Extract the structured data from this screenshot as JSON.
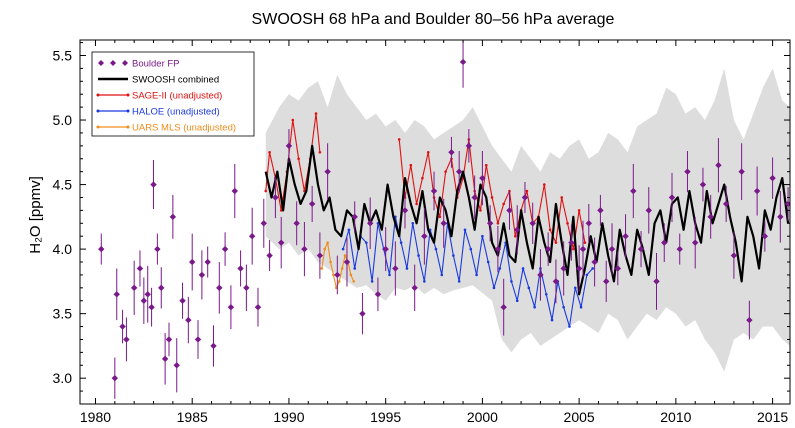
{
  "chart_data": {
    "type": "line",
    "title": "SWOOSH 68 hPa and Boulder 80–56 hPa average",
    "xlabel": "",
    "ylabel": "H₂O [ppmv]",
    "xlim": [
      1979.2,
      2015.9
    ],
    "ylim": [
      2.8,
      5.62
    ],
    "xticks": [
      1980,
      1985,
      1990,
      1995,
      2000,
      2005,
      2010,
      2015
    ],
    "yticks": [
      3.0,
      3.5,
      4.0,
      4.5,
      5.0,
      5.5
    ],
    "grid": false,
    "legend_position": "top-left",
    "envelope": {
      "name": "",
      "color": "#dddddd",
      "x": [
        1988.8,
        1989.5,
        1990.0,
        1990.5,
        1991.0,
        1991.5,
        1992.0,
        1992.5,
        1993.0,
        1993.5,
        1994.0,
        1994.5,
        1995.0,
        1995.5,
        1996.0,
        1996.5,
        1997.0,
        1997.5,
        1998.0,
        1998.5,
        1999.0,
        1999.5,
        2000.0,
        2000.5,
        2001.0,
        2001.5,
        2002.0,
        2002.5,
        2003.0,
        2003.5,
        2004.0,
        2004.5,
        2005.0,
        2005.5,
        2006.0,
        2006.5,
        2007.0,
        2007.5,
        2008.0,
        2008.5,
        2009.0,
        2009.5,
        2010.0,
        2010.5,
        2011.0,
        2011.5,
        2012.0,
        2012.5,
        2013.0,
        2013.5,
        2014.0,
        2014.5,
        2015.0,
        2015.5,
        2015.9
      ],
      "upper": [
        4.9,
        5.1,
        5.2,
        5.15,
        5.25,
        5.3,
        5.1,
        5.35,
        5.2,
        5.1,
        5.0,
        5.05,
        4.95,
        5.0,
        4.9,
        5.0,
        4.95,
        4.85,
        4.9,
        4.95,
        5.0,
        5.1,
        4.95,
        4.8,
        4.7,
        4.6,
        4.8,
        4.7,
        4.6,
        4.75,
        4.7,
        4.8,
        4.85,
        4.7,
        4.75,
        4.9,
        4.85,
        4.75,
        4.95,
        5.0,
        5.05,
        5.25,
        5.2,
        5.05,
        5.1,
        5.0,
        5.15,
        5.4,
        5.0,
        4.85,
        5.05,
        5.25,
        5.4,
        5.15,
        5.1
      ],
      "lower": [
        4.1,
        4.0,
        4.05,
        3.95,
        4.0,
        3.9,
        3.85,
        3.8,
        3.75,
        3.7,
        3.72,
        3.65,
        3.6,
        3.7,
        3.68,
        3.72,
        3.65,
        3.7,
        3.65,
        3.68,
        3.7,
        3.72,
        3.66,
        3.6,
        3.3,
        3.2,
        3.3,
        3.35,
        3.25,
        3.3,
        3.35,
        3.4,
        3.45,
        3.4,
        3.35,
        3.5,
        3.45,
        3.3,
        3.4,
        3.5,
        3.45,
        3.55,
        3.5,
        3.4,
        3.45,
        3.3,
        3.2,
        3.05,
        3.3,
        3.35,
        3.3,
        3.4,
        3.4,
        3.3,
        3.25
      ]
    },
    "series": [
      {
        "name": "Boulder FP",
        "color": "#7a1a8a",
        "style": "diamond-markers-with-errorbars",
        "x": [
          1980.3,
          1981.0,
          1981.1,
          1981.4,
          1981.6,
          1982.0,
          1982.3,
          1982.5,
          1982.7,
          1982.9,
          1983.0,
          1983.2,
          1983.4,
          1983.6,
          1983.8,
          1984.0,
          1984.2,
          1984.5,
          1984.8,
          1985.0,
          1985.3,
          1985.5,
          1985.8,
          1986.1,
          1986.4,
          1986.7,
          1987.0,
          1987.2,
          1987.5,
          1987.8,
          1988.1,
          1988.4,
          1988.7,
          1989.0,
          1989.3,
          1989.6,
          1990.0,
          1990.4,
          1990.8,
          1991.2,
          1991.6,
          1992.0,
          1992.5,
          1993.0,
          1993.4,
          1993.8,
          1994.2,
          1994.6,
          1995.0,
          1995.5,
          1996.0,
          1996.5,
          1997.0,
          1997.5,
          1998.0,
          1998.4,
          1998.8,
          1999.0,
          1999.3,
          1999.6,
          2000.0,
          2000.4,
          2000.8,
          2001.1,
          2001.4,
          2001.8,
          2002.2,
          2002.6,
          2003.0,
          2003.4,
          2003.8,
          2004.2,
          2004.6,
          2005.0,
          2005.2,
          2005.5,
          2005.8,
          2006.1,
          2006.4,
          2006.7,
          2007.0,
          2007.4,
          2007.8,
          2008.2,
          2008.6,
          2009.0,
          2009.4,
          2009.8,
          2010.2,
          2010.6,
          2011.0,
          2011.4,
          2011.8,
          2012.2,
          2012.6,
          2013.0,
          2013.4,
          2013.8,
          2014.2,
          2014.6,
          2015.0,
          2015.4,
          2015.8
        ],
        "y": [
          4.0,
          3.0,
          3.65,
          3.4,
          3.3,
          3.7,
          3.85,
          3.6,
          3.65,
          3.55,
          4.5,
          4.0,
          3.7,
          3.15,
          3.3,
          4.25,
          3.1,
          3.6,
          3.45,
          3.9,
          3.3,
          3.8,
          3.9,
          3.25,
          3.7,
          4.0,
          3.55,
          4.45,
          3.85,
          3.7,
          4.1,
          3.55,
          4.2,
          3.95,
          4.4,
          4.05,
          4.8,
          4.2,
          4.0,
          4.35,
          3.95,
          4.6,
          3.8,
          3.9,
          4.25,
          3.5,
          4.2,
          3.65,
          4.0,
          3.85,
          4.3,
          3.7,
          4.1,
          4.45,
          4.2,
          4.75,
          4.6,
          5.45,
          4.8,
          4.4,
          4.55,
          4.2,
          4.0,
          3.55,
          4.3,
          4.15,
          4.4,
          4.2,
          3.8,
          4.0,
          3.75,
          3.85,
          4.05,
          3.85,
          4.0,
          4.2,
          3.9,
          4.3,
          3.75,
          4.0,
          3.85,
          4.1,
          4.45,
          4.0,
          4.3,
          3.75,
          4.05,
          4.4,
          4.0,
          4.6,
          4.05,
          4.5,
          4.25,
          4.65,
          4.35,
          3.95,
          4.6,
          3.45,
          4.45,
          4.1,
          4.55,
          4.25,
          4.35
        ]
      },
      {
        "name": "SWOOSH combined",
        "color": "#000000",
        "style": "thick-line",
        "x": [
          1988.8,
          1989.1,
          1989.4,
          1989.7,
          1990.0,
          1990.3,
          1990.6,
          1990.9,
          1991.2,
          1991.5,
          1991.8,
          1992.1,
          1992.4,
          1992.7,
          1993.0,
          1993.3,
          1993.6,
          1993.9,
          1994.2,
          1994.5,
          1994.8,
          1995.1,
          1995.4,
          1995.7,
          1996.0,
          1996.3,
          1996.6,
          1996.9,
          1997.2,
          1997.5,
          1997.8,
          1998.1,
          1998.4,
          1998.7,
          1999.0,
          1999.3,
          1999.6,
          1999.9,
          2000.2,
          2000.5,
          2000.8,
          2001.1,
          2001.4,
          2001.7,
          2002.0,
          2002.3,
          2002.6,
          2002.9,
          2003.2,
          2003.5,
          2003.8,
          2004.1,
          2004.4,
          2004.7,
          2005.0,
          2005.3,
          2005.6,
          2005.9,
          2006.2,
          2006.5,
          2006.8,
          2007.1,
          2007.4,
          2007.7,
          2008.0,
          2008.3,
          2008.6,
          2008.9,
          2009.2,
          2009.5,
          2009.8,
          2010.1,
          2010.4,
          2010.7,
          2011.0,
          2011.3,
          2011.6,
          2011.9,
          2012.2,
          2012.5,
          2012.8,
          2013.1,
          2013.4,
          2013.7,
          2014.0,
          2014.3,
          2014.6,
          2014.9,
          2015.2,
          2015.5,
          2015.8
        ],
        "y": [
          4.6,
          4.4,
          4.6,
          4.3,
          4.7,
          4.5,
          4.35,
          4.45,
          4.8,
          4.5,
          4.3,
          4.4,
          4.15,
          4.1,
          4.3,
          4.25,
          4.0,
          4.35,
          4.2,
          4.3,
          4.15,
          4.5,
          4.25,
          4.1,
          4.55,
          4.35,
          4.2,
          4.45,
          4.15,
          4.05,
          4.4,
          4.3,
          4.1,
          4.45,
          4.6,
          4.4,
          4.15,
          4.5,
          4.4,
          4.05,
          3.95,
          4.2,
          3.95,
          3.9,
          4.3,
          4.05,
          3.85,
          4.25,
          4.05,
          3.9,
          4.35,
          4.05,
          3.8,
          4.25,
          3.65,
          3.85,
          4.1,
          3.9,
          4.2,
          3.95,
          3.75,
          4.15,
          3.95,
          3.8,
          4.15,
          4.0,
          3.8,
          4.2,
          4.3,
          4.05,
          4.35,
          4.4,
          4.15,
          4.45,
          4.2,
          4.05,
          4.45,
          4.2,
          4.35,
          4.5,
          4.25,
          4.05,
          3.75,
          4.25,
          4.1,
          3.85,
          4.3,
          4.15,
          4.4,
          4.55,
          4.2
        ]
      },
      {
        "name": "SAGE-II (unadjusted)",
        "color": "#e01010",
        "style": "thin-line-dots",
        "x": [
          1988.8,
          1989.0,
          1989.3,
          1989.6,
          1989.9,
          1990.2,
          1990.5,
          1990.8,
          1991.1,
          1991.4,
          1991.6,
          1995.7,
          1996.0,
          1996.3,
          1996.6,
          1996.9,
          1997.2,
          1997.5,
          1997.8,
          1998.1,
          1998.4,
          1998.7,
          1999.0,
          1999.3,
          1999.6,
          1999.9,
          2000.2,
          2000.5,
          2000.8,
          2001.1,
          2001.4,
          2001.7,
          2002.0,
          2002.3,
          2002.6,
          2002.9,
          2003.2,
          2003.5,
          2003.8,
          2004.1,
          2004.4,
          2004.7,
          2005.0,
          2005.3
        ],
        "y": [
          4.45,
          4.75,
          4.55,
          4.3,
          4.6,
          5.0,
          4.7,
          4.45,
          4.7,
          5.05,
          4.75,
          4.85,
          4.4,
          4.65,
          4.35,
          4.55,
          4.75,
          4.4,
          4.25,
          4.6,
          4.7,
          4.4,
          4.55,
          4.85,
          4.45,
          4.3,
          4.65,
          4.4,
          4.2,
          4.35,
          4.45,
          4.1,
          4.3,
          4.45,
          4.2,
          4.25,
          4.5,
          4.15,
          4.05,
          4.4,
          4.2,
          4.0,
          4.3,
          4.05
        ]
      },
      {
        "name": "HALOE (unadjusted)",
        "color": "#1a3ae0",
        "style": "thin-line-dots",
        "x": [
          1992.8,
          1993.1,
          1993.4,
          1993.7,
          1994.0,
          1994.3,
          1994.6,
          1994.9,
          1995.2,
          1995.5,
          1995.8,
          1996.1,
          1996.4,
          1996.7,
          1997.0,
          1997.3,
          1997.6,
          1997.9,
          1998.2,
          1998.5,
          1998.8,
          1999.1,
          1999.4,
          1999.7,
          2000.0,
          2000.3,
          2000.6,
          2000.9,
          2001.2,
          2001.5,
          2001.8,
          2002.1,
          2002.4,
          2002.7,
          2003.0,
          2003.3,
          2003.6,
          2003.9,
          2004.2,
          2004.5,
          2004.8,
          2005.1,
          2005.4,
          2005.7
        ],
        "y": [
          4.0,
          4.15,
          3.85,
          4.1,
          4.05,
          3.75,
          4.2,
          4.0,
          3.8,
          4.25,
          4.05,
          3.85,
          4.2,
          3.95,
          3.75,
          4.15,
          4.0,
          3.8,
          4.2,
          3.95,
          3.75,
          4.15,
          4.0,
          3.8,
          4.1,
          3.9,
          3.7,
          3.85,
          4.05,
          3.75,
          3.6,
          3.85,
          3.7,
          3.55,
          3.85,
          3.65,
          3.45,
          3.75,
          3.55,
          3.4,
          3.7,
          3.55,
          3.8,
          3.85
        ]
      },
      {
        "name": "UARS MLS (unadjusted)",
        "color": "#f08c1a",
        "style": "thin-line-dots",
        "x": [
          1991.7,
          1991.85,
          1992.0,
          1992.15,
          1992.3,
          1992.45,
          1992.6,
          1992.75,
          1992.9,
          1993.05,
          1993.2,
          1993.35
        ],
        "y": [
          3.85,
          4.0,
          4.05,
          3.9,
          3.8,
          3.7,
          3.75,
          3.85,
          3.95,
          3.9,
          3.8,
          3.75
        ]
      }
    ]
  }
}
